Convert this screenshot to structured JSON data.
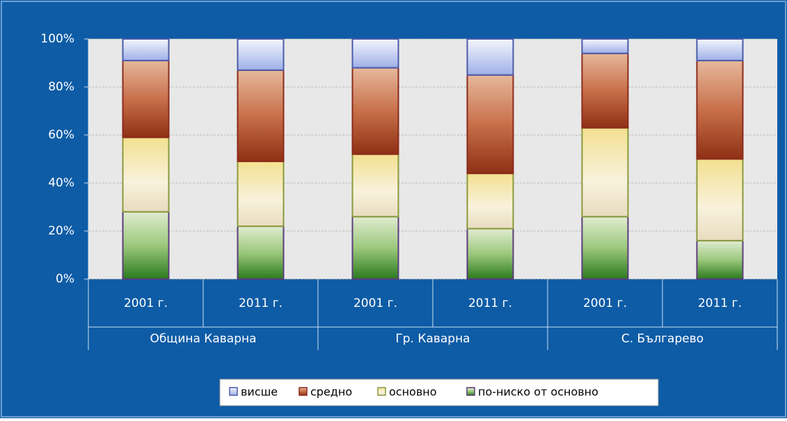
{
  "chart_data": {
    "type": "stacked_bar_100",
    "categories": [
      "2001 г.",
      "2011 г.",
      "2001 г.",
      "2011 г.",
      "2001 г.",
      "2011 г."
    ],
    "category_groups": [
      "Община Каварна",
      "Гр. Каварна",
      "С. Българево"
    ],
    "series": [
      {
        "name": "висше",
        "color": "#4a5aa8",
        "values": [
          9,
          13,
          12,
          15,
          6,
          9
        ]
      },
      {
        "name": "средно",
        "color": "#8b2a1c",
        "values": [
          32,
          38,
          36,
          41,
          31,
          41
        ]
      },
      {
        "name": "основно",
        "color": "#8a9a3a",
        "values": [
          31,
          27,
          26,
          23,
          37,
          34
        ]
      },
      {
        "name": "по-ниско от основно",
        "color": "#5a3d7a",
        "values": [
          28,
          22,
          26,
          21,
          26,
          16
        ]
      }
    ],
    "ylim": [
      0,
      100
    ],
    "yticks": [
      {
        "value": 0,
        "label": "0%"
      },
      {
        "value": 20,
        "label": "20%"
      },
      {
        "value": 40,
        "label": "40%"
      },
      {
        "value": 60,
        "label": "60%"
      },
      {
        "value": 80,
        "label": "80%"
      },
      {
        "value": 100,
        "label": "100%"
      }
    ],
    "grid": true,
    "legend": "bottom"
  }
}
